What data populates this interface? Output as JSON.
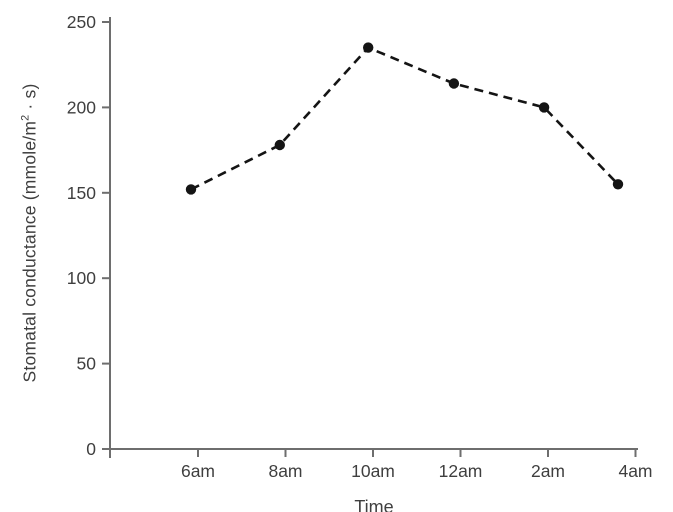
{
  "figure": {
    "background": "#ffffff"
  },
  "chart_data": {
    "type": "line",
    "title": "",
    "xlabel": "Time",
    "ylabel": "Stomatal conductance (mmole/m² · s)",
    "ylabel_parts": {
      "pre": "Stomatal conductance (mmole/m",
      "sup": "2",
      "post": " · s)"
    },
    "categories": [
      "6am",
      "8am",
      "10am",
      "12am",
      "2am",
      "4am"
    ],
    "series": [
      {
        "name": "Stomatal conductance",
        "values": [
          152,
          178,
          235,
          214,
          200,
          155
        ]
      }
    ],
    "x_tick_hours": [
      6,
      8,
      10,
      12,
      14,
      16
    ],
    "point_x_hours": [
      5.84,
      7.87,
      9.89,
      11.85,
      13.91,
      15.6
    ],
    "y_ticks": [
      0,
      50,
      100,
      150,
      200,
      250
    ],
    "ylim": [
      0,
      250
    ],
    "grid": false,
    "legend": "none",
    "line_style": "dashed",
    "marker": "filled-circle",
    "colors": {
      "line": "#141414",
      "marker": "#141414",
      "axis": "#6e6e6e",
      "text": "#3f3f3f",
      "background": "#ffffff"
    }
  }
}
